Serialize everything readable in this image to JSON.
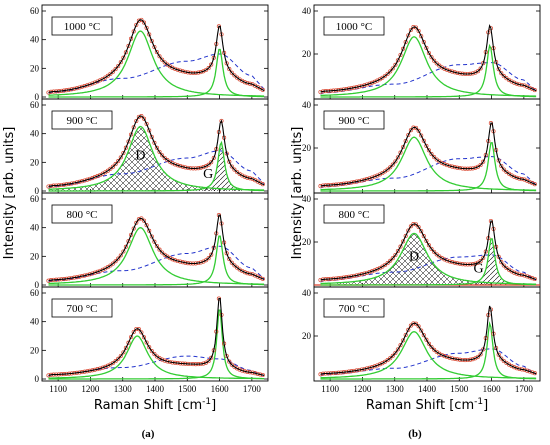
{
  "chart_data": [
    {
      "type": "line",
      "caption": "(a)",
      "xlabel": "Raman Shift  [cm",
      "xlabel_sup": "-1",
      "xlabel_end": "]",
      "ylabel": "Intensity  [arb. units]",
      "xlim": [
        1050,
        1750
      ],
      "xticks": [
        "1100",
        "1200",
        "1300",
        "1400",
        "1500",
        "1600",
        "1700"
      ],
      "ylim": [
        0,
        60
      ],
      "yticks": [
        "0",
        "20",
        "40",
        "60"
      ],
      "colors": {
        "measured": "#d9412a",
        "fit_sum": "#000000",
        "peak": "#33cc33",
        "background": "#2233cc"
      },
      "panels": [
        {
          "label": "1000 °C",
          "D": {
            "center": 1355,
            "width": 95,
            "height": 46
          },
          "G": {
            "center": 1600,
            "width": 25,
            "height": 34
          },
          "background": [
            {
              "x": 1080,
              "y": 3
            },
            {
              "x": 1300,
              "y": 13
            },
            {
              "x": 1500,
              "y": 25
            },
            {
              "x": 1600,
              "y": 30
            },
            {
              "x": 1700,
              "y": 15
            }
          ],
          "shaded": false
        },
        {
          "label": "900 °C",
          "D": {
            "center": 1355,
            "width": 95,
            "height": 45
          },
          "G": {
            "center": 1605,
            "width": 25,
            "height": 34
          },
          "background": [
            {
              "x": 1080,
              "y": 3
            },
            {
              "x": 1300,
              "y": 12
            },
            {
              "x": 1500,
              "y": 23
            },
            {
              "x": 1600,
              "y": 28
            },
            {
              "x": 1700,
              "y": 14
            }
          ],
          "shaded": true,
          "D_label": "D",
          "G_label": "G"
        },
        {
          "label": "800 °C",
          "D": {
            "center": 1355,
            "width": 95,
            "height": 40
          },
          "G": {
            "center": 1600,
            "width": 25,
            "height": 35
          },
          "background": [
            {
              "x": 1080,
              "y": 3
            },
            {
              "x": 1300,
              "y": 10
            },
            {
              "x": 1500,
              "y": 22
            },
            {
              "x": 1600,
              "y": 27
            },
            {
              "x": 1700,
              "y": 12
            }
          ],
          "shaded": false
        },
        {
          "label": "700 °C",
          "D": {
            "center": 1345,
            "width": 80,
            "height": 30
          },
          "G": {
            "center": 1600,
            "width": 20,
            "height": 50
          },
          "background": [
            {
              "x": 1080,
              "y": 3
            },
            {
              "x": 1300,
              "y": 8
            },
            {
              "x": 1500,
              "y": 16
            },
            {
              "x": 1600,
              "y": 14
            },
            {
              "x": 1700,
              "y": 6
            }
          ],
          "shaded": false
        }
      ]
    },
    {
      "type": "line",
      "caption": "(b)",
      "xlabel": "Raman Shift  [cm",
      "xlabel_sup": "-1",
      "xlabel_end": "]",
      "ylabel": "Intensity  [arb. units]",
      "xlim": [
        1050,
        1750
      ],
      "xticks": [
        "1100",
        "1200",
        "1300",
        "1400",
        "1500",
        "1600",
        "1700"
      ],
      "ylim": [
        0,
        40
      ],
      "yticks": [
        "20",
        "40"
      ],
      "colors": {
        "measured": "#d9412a",
        "fit_sum": "#000000",
        "peak": "#33cc33",
        "background": "#2233cc"
      },
      "panels": [
        {
          "label": "1000 °C",
          "D": {
            "center": 1360,
            "width": 95,
            "height": 28
          },
          "G": {
            "center": 1595,
            "width": 25,
            "height": 24
          },
          "background": [
            {
              "x": 1080,
              "y": 2
            },
            {
              "x": 1300,
              "y": 6
            },
            {
              "x": 1500,
              "y": 15
            },
            {
              "x": 1600,
              "y": 16
            },
            {
              "x": 1700,
              "y": 8
            }
          ],
          "shaded": false
        },
        {
          "label": "900 °C",
          "D": {
            "center": 1360,
            "width": 95,
            "height": 25
          },
          "G": {
            "center": 1600,
            "width": 25,
            "height": 23
          },
          "background": [
            {
              "x": 1080,
              "y": 2
            },
            {
              "x": 1300,
              "y": 6
            },
            {
              "x": 1500,
              "y": 15
            },
            {
              "x": 1600,
              "y": 16
            },
            {
              "x": 1700,
              "y": 8
            }
          ],
          "shaded": false
        },
        {
          "label": "800 °C",
          "D": {
            "center": 1360,
            "width": 100,
            "height": 24
          },
          "G": {
            "center": 1600,
            "width": 25,
            "height": 22
          },
          "background": [
            {
              "x": 1080,
              "y": 2
            },
            {
              "x": 1300,
              "y": 6
            },
            {
              "x": 1500,
              "y": 13
            },
            {
              "x": 1600,
              "y": 14
            },
            {
              "x": 1700,
              "y": 6
            }
          ],
          "shaded": true,
          "D_label": "D",
          "G_label": "G"
        },
        {
          "label": "700 °C",
          "D": {
            "center": 1360,
            "width": 95,
            "height": 22
          },
          "G": {
            "center": 1595,
            "width": 22,
            "height": 26
          },
          "background": [
            {
              "x": 1080,
              "y": 2
            },
            {
              "x": 1300,
              "y": 5
            },
            {
              "x": 1500,
              "y": 12
            },
            {
              "x": 1600,
              "y": 14
            },
            {
              "x": 1700,
              "y": 6
            }
          ],
          "shaded": false
        }
      ]
    }
  ]
}
